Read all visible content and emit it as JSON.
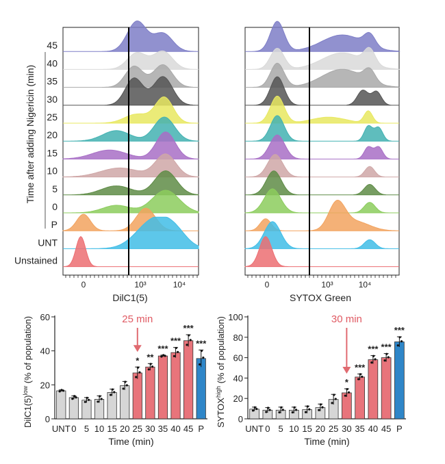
{
  "colors": {
    "red": "#e8747b",
    "grey": "#d6d6d6",
    "blue": "#2f86c8",
    "arrow": "#e06a70",
    "hist": {
      "45": "#7e7ec7",
      "40": "#d9d9d9",
      "35": "#a9a9a9",
      "30": "#555555",
      "25": "#e8e860",
      "20": "#43b2b2",
      "15": "#a86fc6",
      "10": "#cfa7a7",
      "5": "#5f8c47",
      "0": "#8ccc5d",
      "P": "#f2a35f",
      "UNT": "#41bde6",
      "Unstained": "#ec6e72"
    }
  },
  "histograms": {
    "ylabel": "Time after adding Nigericin (min)",
    "rows": [
      "45",
      "40",
      "35",
      "30",
      "25",
      "20",
      "15",
      "10",
      "5",
      "0",
      "P",
      "UNT",
      "Unstained"
    ],
    "left": {
      "xlabel": "DilC1(5)",
      "ticks": [
        "0",
        "10³",
        "10⁴"
      ],
      "gate_label": "10³"
    },
    "right": {
      "xlabel": "SYTOX Green",
      "ticks": [
        "0",
        "10³",
        "10⁴"
      ]
    }
  },
  "chart_data": [
    {
      "type": "bar",
      "title": "",
      "xlabel": "Time (min)",
      "ylabel": "DilC1(5)low (% of population)",
      "ylabel_main": "DilC1(5)",
      "ylabel_sup": "low",
      "ylabel_rest": " (% of population)",
      "ylim": [
        0,
        60
      ],
      "yticks": [
        "0",
        "20",
        "40",
        "60"
      ],
      "categories": [
        "UNT",
        "0",
        "5",
        "10",
        "15",
        "20",
        "25",
        "30",
        "35",
        "40",
        "45",
        "P"
      ],
      "values": [
        16.5,
        12.5,
        11,
        11.5,
        15.5,
        19.5,
        27,
        30.5,
        37,
        39,
        46,
        35.5
      ],
      "errors": [
        0.5,
        1,
        1.5,
        2,
        2,
        2.5,
        3.5,
        2,
        0.5,
        3,
        3.5,
        5
      ],
      "bar_color": [
        "grey",
        "grey",
        "grey",
        "grey",
        "grey",
        "grey",
        "red",
        "red",
        "red",
        "red",
        "red",
        "blue"
      ],
      "significance": [
        "",
        "",
        "",
        "",
        "",
        "",
        "*",
        "**",
        "***",
        "***",
        "***",
        "***"
      ],
      "annotation": "25 min",
      "annotation_category": "25"
    },
    {
      "type": "bar",
      "title": "",
      "xlabel": "Time (min)",
      "ylabel": "SYTOXhigh (% of population)",
      "ylabel_main": "SYTOX",
      "ylabel_sup": "high",
      "ylabel_rest": " (% of population)",
      "ylim": [
        0,
        100
      ],
      "yticks": [
        "0",
        "20",
        "40",
        "60",
        "80",
        "100"
      ],
      "categories": [
        "UNT",
        "0",
        "5",
        "10",
        "15",
        "20",
        "25",
        "30",
        "35",
        "40",
        "45",
        "P"
      ],
      "values": [
        9.5,
        8.5,
        8.5,
        8.5,
        9,
        11,
        19,
        25.5,
        41,
        58,
        60,
        75.5
      ],
      "errors": [
        2,
        2.5,
        3,
        3,
        3.5,
        3.5,
        5,
        4,
        3,
        4,
        4,
        5
      ],
      "bar_color": [
        "grey",
        "grey",
        "grey",
        "grey",
        "grey",
        "grey",
        "grey",
        "red",
        "red",
        "red",
        "red",
        "blue"
      ],
      "significance": [
        "",
        "",
        "",
        "",
        "",
        "",
        "",
        "*",
        "***",
        "***",
        "***",
        "***"
      ],
      "annotation": "30 min",
      "annotation_category": "30"
    }
  ]
}
